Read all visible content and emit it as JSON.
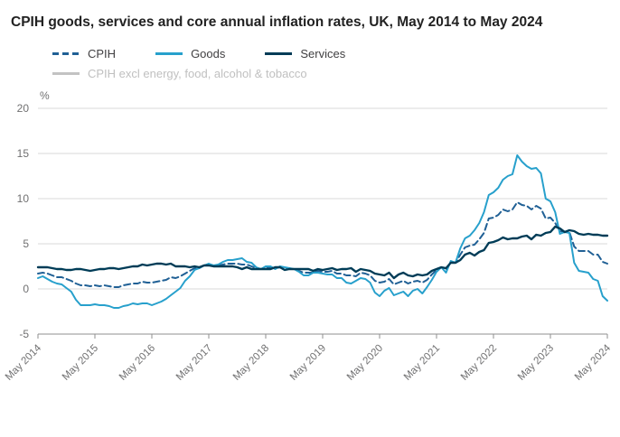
{
  "legend": {
    "items": [
      {
        "label": "CPIH",
        "color": "#206095",
        "dash": true,
        "active": true,
        "text_color": "#414042"
      },
      {
        "label": "Goods",
        "color": "#27a0cc",
        "dash": false,
        "active": true,
        "text_color": "#414042"
      },
      {
        "label": "Services",
        "color": "#003c57",
        "dash": false,
        "active": true,
        "text_color": "#414042"
      },
      {
        "label": "CPIH excl energy, food, alcohol & tobacco",
        "color": "#c3c3c3",
        "dash": false,
        "active": false,
        "text_color": "#c0c0c0"
      }
    ]
  },
  "chart_data": {
    "type": "line",
    "title": "CPIH goods, services and core annual inflation rates, UK, May 2014 to May 2024",
    "xlabel": "",
    "ylabel": "%",
    "ylim": [
      -5,
      20
    ],
    "yticks": [
      -5,
      0,
      5,
      10,
      15,
      20
    ],
    "grid": true,
    "legend_position": "top",
    "x_frequency": "monthly",
    "x_start": "May 2014",
    "x_end": "May 2024",
    "x_tick_every_months": 12,
    "x_tick_labels": [
      "May 2014",
      "May 2015",
      "May 2016",
      "May 2017",
      "May 2018",
      "May 2019",
      "May 2020",
      "May 2021",
      "May 2022",
      "May 2023",
      "May 2024"
    ],
    "axis_color": "#8f8f8f",
    "grid_color": "#d9d9d9",
    "tick_label_color": "#707071",
    "series": [
      {
        "name": "CPIH",
        "color": "#206095",
        "dash": true,
        "width": 2,
        "visible": true,
        "values": [
          1.7,
          1.8,
          1.7,
          1.5,
          1.3,
          1.3,
          1.1,
          0.9,
          0.6,
          0.4,
          0.4,
          0.3,
          0.4,
          0.3,
          0.4,
          0.3,
          0.2,
          0.2,
          0.4,
          0.5,
          0.6,
          0.6,
          0.8,
          0.7,
          0.7,
          0.8,
          0.9,
          1.0,
          1.3,
          1.2,
          1.4,
          1.7,
          2.0,
          2.3,
          2.3,
          2.6,
          2.7,
          2.6,
          2.6,
          2.7,
          2.8,
          2.8,
          2.8,
          2.7,
          2.7,
          2.5,
          2.3,
          2.2,
          2.3,
          2.3,
          2.3,
          2.4,
          2.2,
          2.2,
          2.2,
          2.0,
          1.8,
          1.8,
          1.8,
          2.0,
          1.9,
          1.9,
          2.0,
          1.7,
          1.7,
          1.5,
          1.5,
          1.4,
          1.8,
          1.7,
          1.5,
          0.9,
          0.7,
          0.8,
          1.1,
          0.5,
          0.7,
          0.9,
          0.6,
          0.8,
          0.9,
          0.7,
          1.0,
          1.6,
          2.1,
          2.4,
          2.1,
          3.0,
          2.9,
          3.8,
          4.6,
          4.8,
          4.9,
          5.5,
          6.2,
          7.8,
          7.9,
          8.2,
          8.8,
          8.6,
          8.8,
          9.6,
          9.3,
          9.2,
          8.8,
          9.2,
          8.9,
          7.8,
          7.9,
          7.3,
          6.4,
          6.3,
          6.3,
          4.7,
          4.2,
          4.2,
          4.2,
          3.8,
          3.8,
          3.0,
          2.8
        ]
      },
      {
        "name": "Goods",
        "color": "#27a0cc",
        "dash": false,
        "width": 2,
        "visible": true,
        "values": [
          1.2,
          1.4,
          1.1,
          0.8,
          0.6,
          0.5,
          0.1,
          -0.3,
          -1.2,
          -1.8,
          -1.8,
          -1.8,
          -1.7,
          -1.8,
          -1.8,
          -1.9,
          -2.1,
          -2.1,
          -1.9,
          -1.8,
          -1.6,
          -1.7,
          -1.6,
          -1.6,
          -1.8,
          -1.6,
          -1.4,
          -1.1,
          -0.7,
          -0.3,
          0.1,
          0.9,
          1.4,
          2.1,
          2.3,
          2.6,
          2.8,
          2.6,
          2.7,
          3.0,
          3.2,
          3.2,
          3.3,
          3.4,
          3.0,
          2.9,
          2.4,
          2.2,
          2.5,
          2.5,
          2.2,
          2.5,
          2.4,
          2.3,
          2.2,
          1.9,
          1.5,
          1.5,
          1.8,
          1.8,
          1.7,
          1.6,
          1.6,
          1.2,
          1.2,
          0.7,
          0.6,
          0.9,
          1.2,
          1.1,
          0.7,
          -0.4,
          -0.8,
          -0.2,
          0.1,
          -0.7,
          -0.5,
          -0.3,
          -0.8,
          -0.2,
          0.0,
          -0.5,
          0.2,
          1.0,
          1.9,
          2.4,
          1.8,
          3.1,
          2.9,
          4.5,
          5.6,
          5.9,
          6.5,
          7.3,
          8.5,
          10.4,
          10.7,
          11.2,
          12.1,
          12.5,
          12.7,
          14.8,
          14.1,
          13.6,
          13.3,
          13.4,
          12.8,
          10.0,
          9.7,
          8.5,
          6.1,
          6.3,
          6.2,
          2.9,
          2.0,
          1.9,
          1.8,
          1.1,
          0.9,
          -0.8,
          -1.3
        ]
      },
      {
        "name": "Services",
        "color": "#003c57",
        "dash": false,
        "width": 2.4,
        "visible": true,
        "values": [
          2.4,
          2.4,
          2.4,
          2.3,
          2.2,
          2.2,
          2.1,
          2.1,
          2.2,
          2.2,
          2.1,
          2.0,
          2.1,
          2.2,
          2.2,
          2.3,
          2.3,
          2.2,
          2.3,
          2.4,
          2.5,
          2.5,
          2.7,
          2.6,
          2.7,
          2.8,
          2.8,
          2.7,
          2.8,
          2.5,
          2.5,
          2.5,
          2.4,
          2.5,
          2.4,
          2.6,
          2.6,
          2.5,
          2.5,
          2.5,
          2.5,
          2.5,
          2.4,
          2.2,
          2.4,
          2.2,
          2.2,
          2.2,
          2.2,
          2.2,
          2.4,
          2.4,
          2.1,
          2.2,
          2.2,
          2.2,
          2.2,
          2.2,
          2.0,
          2.2,
          2.1,
          2.2,
          2.3,
          2.1,
          2.2,
          2.2,
          2.3,
          1.9,
          2.2,
          2.1,
          2.0,
          1.7,
          1.6,
          1.5,
          1.8,
          1.2,
          1.6,
          1.8,
          1.5,
          1.4,
          1.6,
          1.5,
          1.6,
          2.0,
          2.2,
          2.4,
          2.3,
          2.9,
          2.9,
          3.2,
          3.8,
          4.0,
          3.7,
          4.1,
          4.3,
          5.1,
          5.2,
          5.4,
          5.7,
          5.5,
          5.6,
          5.6,
          5.8,
          5.9,
          5.5,
          6.0,
          5.9,
          6.2,
          6.3,
          6.9,
          6.7,
          6.3,
          6.5,
          6.4,
          6.1,
          6.0,
          6.1,
          6.0,
          6.0,
          5.9,
          5.9
        ]
      },
      {
        "name": "CPIH excl energy, food, alcohol & tobacco",
        "color": "#c3c3c3",
        "dash": false,
        "width": 2,
        "visible": false,
        "values": []
      }
    ]
  }
}
